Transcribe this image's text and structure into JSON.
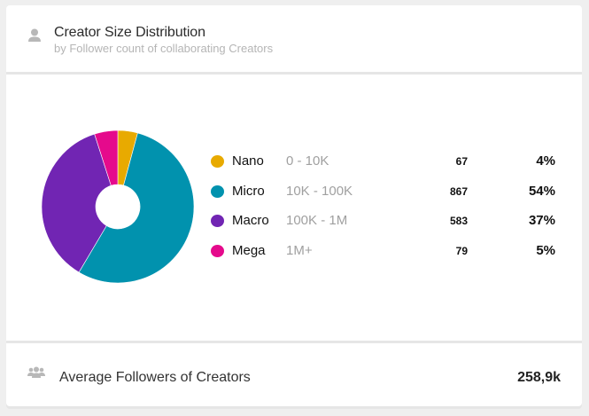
{
  "header": {
    "icon": "person-icon",
    "title": "Creator Size Distribution",
    "subtitle": "by Follower count of collaborating Creators"
  },
  "legend": [
    {
      "name": "Nano",
      "range": "0 - 10K",
      "count": "67",
      "percent": "4%",
      "color": "#e8aa00"
    },
    {
      "name": "Micro",
      "range": "10K - 100K",
      "count": "867",
      "percent": "54%",
      "color": "#0192ae"
    },
    {
      "name": "Macro",
      "range": "100K - 1M",
      "count": "583",
      "percent": "37%",
      "color": "#7125b3"
    },
    {
      "name": "Mega",
      "range": "1M+",
      "count": "79",
      "percent": "5%",
      "color": "#e50a8c"
    }
  ],
  "footer": {
    "icon": "group-icon",
    "label": "Average Followers of Creators",
    "value": "258,9k"
  },
  "chart_data": {
    "type": "pie",
    "subtype": "donut",
    "title": "Creator Size Distribution",
    "subtitle": "by Follower count of collaborating Creators",
    "categories": [
      "Nano",
      "Micro",
      "Macro",
      "Mega"
    ],
    "ranges": [
      "0 - 10K",
      "10K - 100K",
      "100K - 1M",
      "1M+"
    ],
    "values": [
      67,
      867,
      583,
      79
    ],
    "percentages": [
      4,
      54,
      37,
      5
    ],
    "colors": [
      "#e8aa00",
      "#0192ae",
      "#7125b3",
      "#e50a8c"
    ],
    "legend_position": "right",
    "start_angle_deg": 0,
    "direction": "clockwise"
  }
}
